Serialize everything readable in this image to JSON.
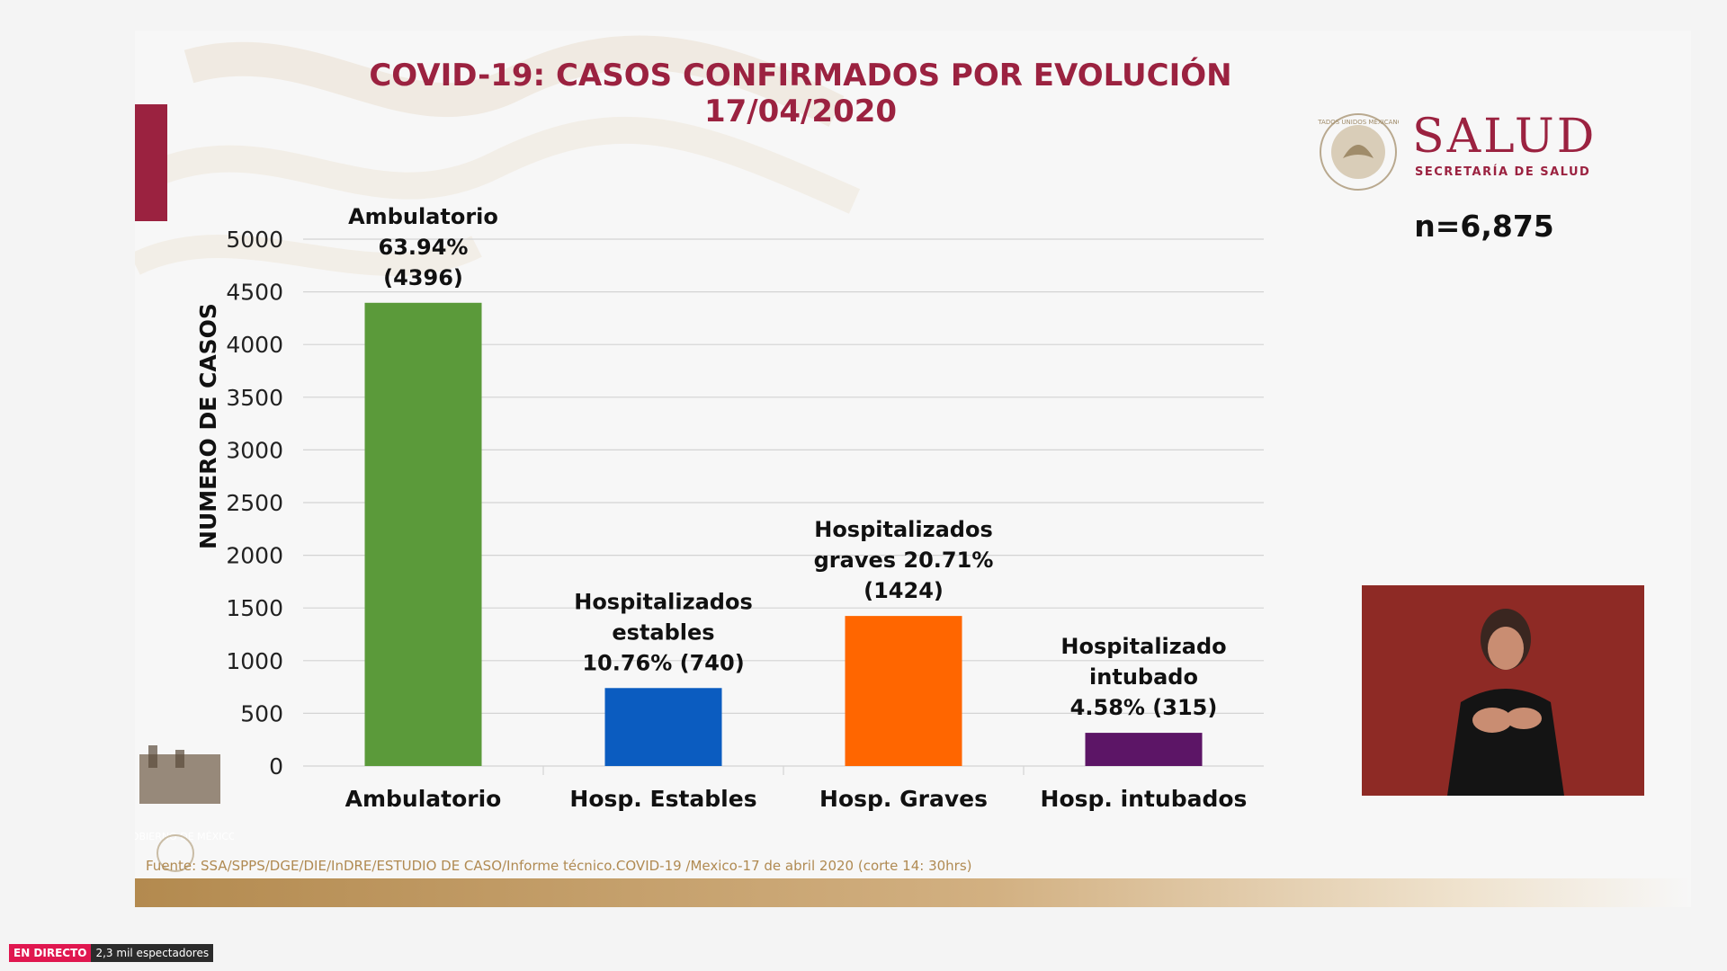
{
  "title_line1": "COVID-19: CASOS CONFIRMADOS POR EVOLUCIÓN",
  "title_line2": "17/04/2020",
  "logo": {
    "word": "SALUD",
    "subtitle": "SECRETARÍA DE SALUD",
    "seal_text": "ESTADOS UNIDOS MEXICANOS"
  },
  "n_total": "n=6,875",
  "source": "Fuente: SSA/SPPS/DGE/DIE/InDRE/ESTUDIO DE CASO/Informe técnico.COVID-19 /Mexico-17 de abril 2020 (corte 14: 30hrs)",
  "mexico_logo_text": "GOBIERNO DE MÉXICO",
  "stream": {
    "live_label": "EN DIRECTO",
    "viewers": "2,3 mil espectadores"
  },
  "colors": {
    "brand": "#9b2240",
    "bars": [
      "#5b9a3a",
      "#0b5cc0",
      "#ff6600",
      "#5c1566"
    ]
  },
  "chart_data": {
    "type": "bar",
    "title": "COVID-19: CASOS CONFIRMADOS POR EVOLUCIÓN",
    "ylabel": "NUMERO DE CASOS",
    "xlabel": "",
    "ylim": [
      0,
      5000
    ],
    "yticks": [
      0,
      500,
      1000,
      1500,
      2000,
      2500,
      3000,
      3500,
      4000,
      4500,
      5000
    ],
    "grid": true,
    "categories": [
      "Ambulatorio",
      "Hosp. Estables",
      "Hosp. Graves",
      "Hosp. intubados"
    ],
    "values": [
      4396,
      740,
      1424,
      315
    ],
    "annotations": [
      [
        "Ambulatorio",
        "63.94%",
        "(4396)"
      ],
      [
        "Hospitalizados",
        "estables",
        "10.76% (740)"
      ],
      [
        "Hospitalizados",
        "graves 20.71%",
        "(1424)"
      ],
      [
        "Hospitalizado",
        "intubado",
        "4.58% (315)"
      ]
    ]
  }
}
